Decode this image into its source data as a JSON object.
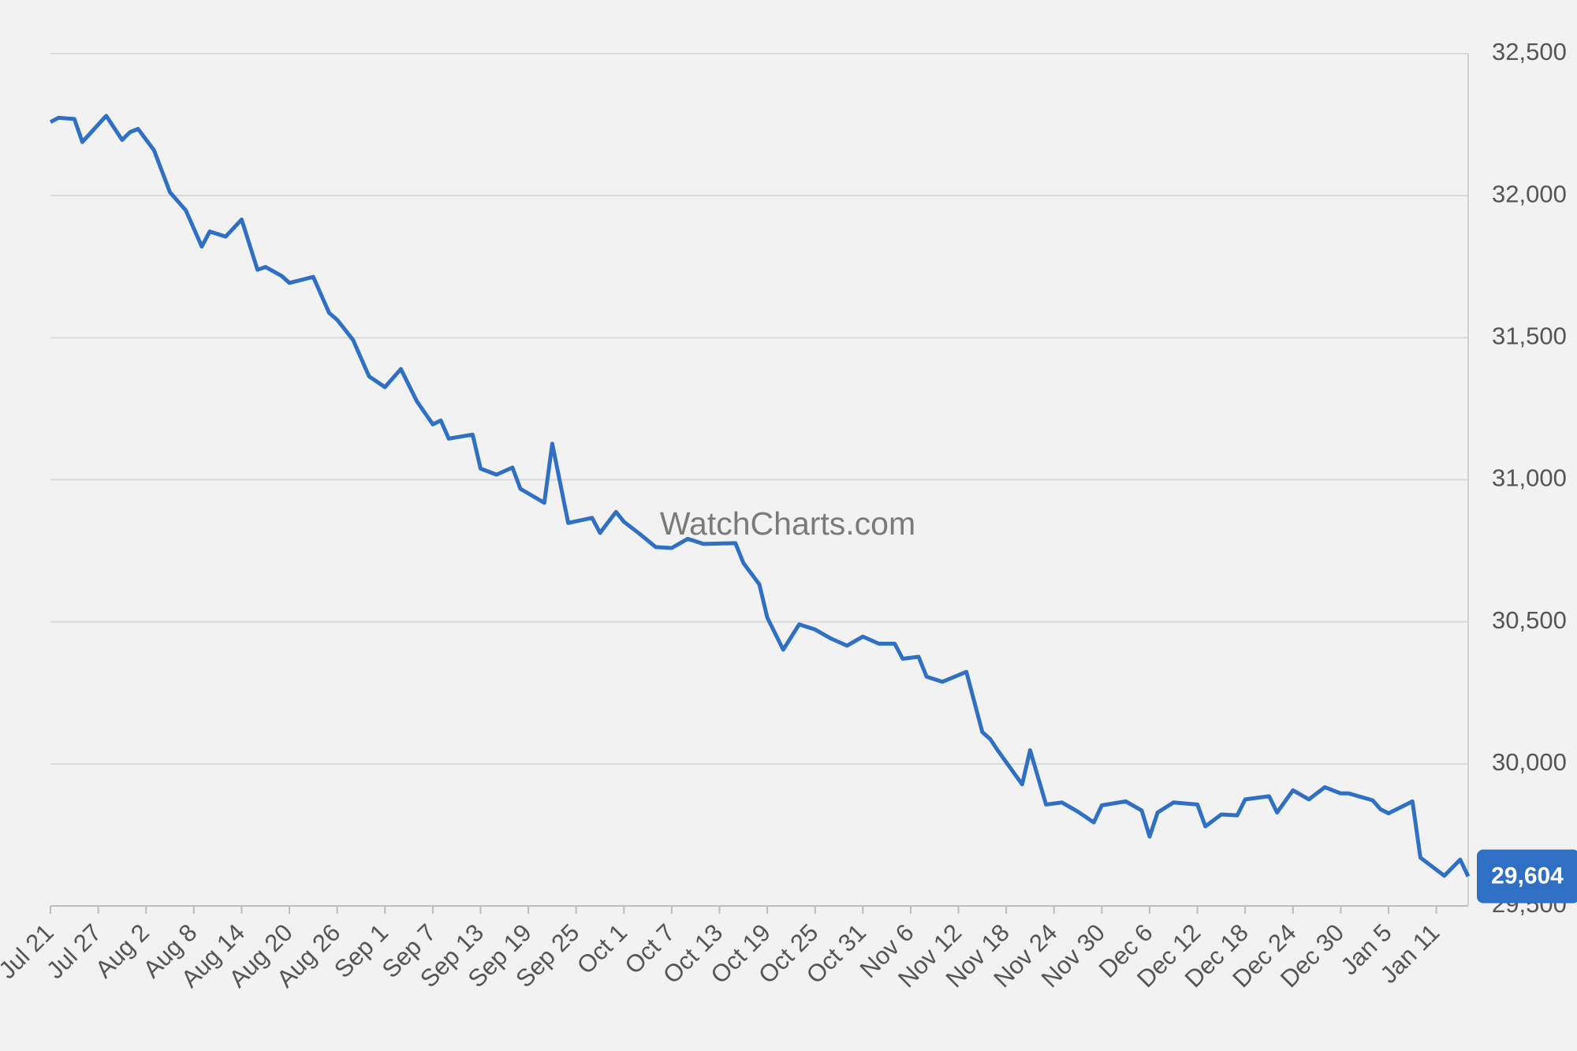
{
  "chart_data": {
    "type": "line",
    "watermark": "WatchCharts.com",
    "series": [
      {
        "name": "Price",
        "color": "#2f6fc4",
        "x": [
          "Jul 21",
          "Jul 22",
          "Jul 24",
          "Jul 25",
          "Jul 28",
          "Jul 30",
          "Jul 31",
          "Aug 1",
          "Aug 3",
          "Aug 5",
          "Aug 7",
          "Aug 9",
          "Aug 10",
          "Aug 12",
          "Aug 14",
          "Aug 16",
          "Aug 17",
          "Aug 19",
          "Aug 20",
          "Aug 23",
          "Aug 25",
          "Aug 26",
          "Aug 28",
          "Aug 30",
          "Sep 1",
          "Sep 3",
          "Sep 5",
          "Sep 7",
          "Sep 8",
          "Sep 9",
          "Sep 12",
          "Sep 13",
          "Sep 15",
          "Sep 17",
          "Sep 18",
          "Sep 21",
          "Sep 22",
          "Sep 24",
          "Sep 27",
          "Sep 28",
          "Sep 30",
          "Oct 1",
          "Oct 3",
          "Oct 5",
          "Oct 7",
          "Oct 9",
          "Oct 11",
          "Oct 15",
          "Oct 16",
          "Oct 18",
          "Oct 19",
          "Oct 21",
          "Oct 23",
          "Oct 25",
          "Oct 27",
          "Oct 29",
          "Oct 31",
          "Nov 2",
          "Nov 4",
          "Nov 5",
          "Nov 7",
          "Nov 8",
          "Nov 10",
          "Nov 13",
          "Nov 15",
          "Nov 16",
          "Nov 17",
          "Nov 20",
          "Nov 21",
          "Nov 23",
          "Nov 25",
          "Nov 27",
          "Nov 29",
          "Nov 30",
          "Dec 3",
          "Dec 5",
          "Dec 6",
          "Dec 7",
          "Dec 9",
          "Dec 12",
          "Dec 13",
          "Dec 15",
          "Dec 17",
          "Dec 18",
          "Dec 21",
          "Dec 22",
          "Dec 24",
          "Dec 26",
          "Dec 28",
          "Dec 30",
          "Dec 31",
          "Jan 3",
          "Jan 4",
          "Jan 5",
          "Jan 8",
          "Jan 9",
          "Jan 12",
          "Jan 14",
          "Jan 15"
        ],
        "values": [
          32259,
          32274,
          32270,
          32189,
          32281,
          32196,
          32224,
          32235,
          32160,
          32012,
          31948,
          31821,
          31874,
          31856,
          31916,
          31739,
          31749,
          31718,
          31693,
          31714,
          31587,
          31563,
          31492,
          31364,
          31326,
          31390,
          31276,
          31195,
          31209,
          31145,
          31159,
          31039,
          31018,
          31043,
          30968,
          30919,
          31127,
          30848,
          30866,
          30813,
          30887,
          30852,
          30809,
          30763,
          30760,
          30792,
          30774,
          30777,
          30707,
          30632,
          30515,
          30402,
          30491,
          30473,
          30441,
          30416,
          30448,
          30423,
          30423,
          30370,
          30377,
          30307,
          30289,
          30324,
          30112,
          30087,
          30045,
          29928,
          30048,
          29857,
          29864,
          29832,
          29794,
          29854,
          29868,
          29836,
          29744,
          29829,
          29864,
          29857,
          29780,
          29822,
          29819,
          29875,
          29886,
          29829,
          29907,
          29875,
          29918,
          29896,
          29896,
          29872,
          29840,
          29826,
          29868,
          29670,
          29606,
          29663,
          29604
        ]
      }
    ],
    "current_value": {
      "value": 29604,
      "label": "29,604"
    },
    "xlim": [
      "Jul 21",
      "Jan 15"
    ],
    "xticks": [
      "Jul 21",
      "Jul 27",
      "Aug 2",
      "Aug 8",
      "Aug 14",
      "Aug 20",
      "Aug 26",
      "Sep 1",
      "Sep 7",
      "Sep 13",
      "Sep 19",
      "Sep 25",
      "Oct 1",
      "Oct 7",
      "Oct 13",
      "Oct 19",
      "Oct 25",
      "Oct 31",
      "Nov 6",
      "Nov 12",
      "Nov 18",
      "Nov 24",
      "Nov 30",
      "Dec 6",
      "Dec 12",
      "Dec 18",
      "Dec 24",
      "Dec 30",
      "Jan 5",
      "Jan 11"
    ],
    "ylim": [
      29500,
      32500
    ],
    "yticks": [
      {
        "value": 29500,
        "label": "29,500"
      },
      {
        "value": 30000,
        "label": "30,000"
      },
      {
        "value": 30500,
        "label": "30,500"
      },
      {
        "value": 31000,
        "label": "31,000"
      },
      {
        "value": 31500,
        "label": "31,500"
      },
      {
        "value": 32000,
        "label": "32,000"
      },
      {
        "value": 32500,
        "label": "32,500"
      }
    ],
    "grid": true
  }
}
